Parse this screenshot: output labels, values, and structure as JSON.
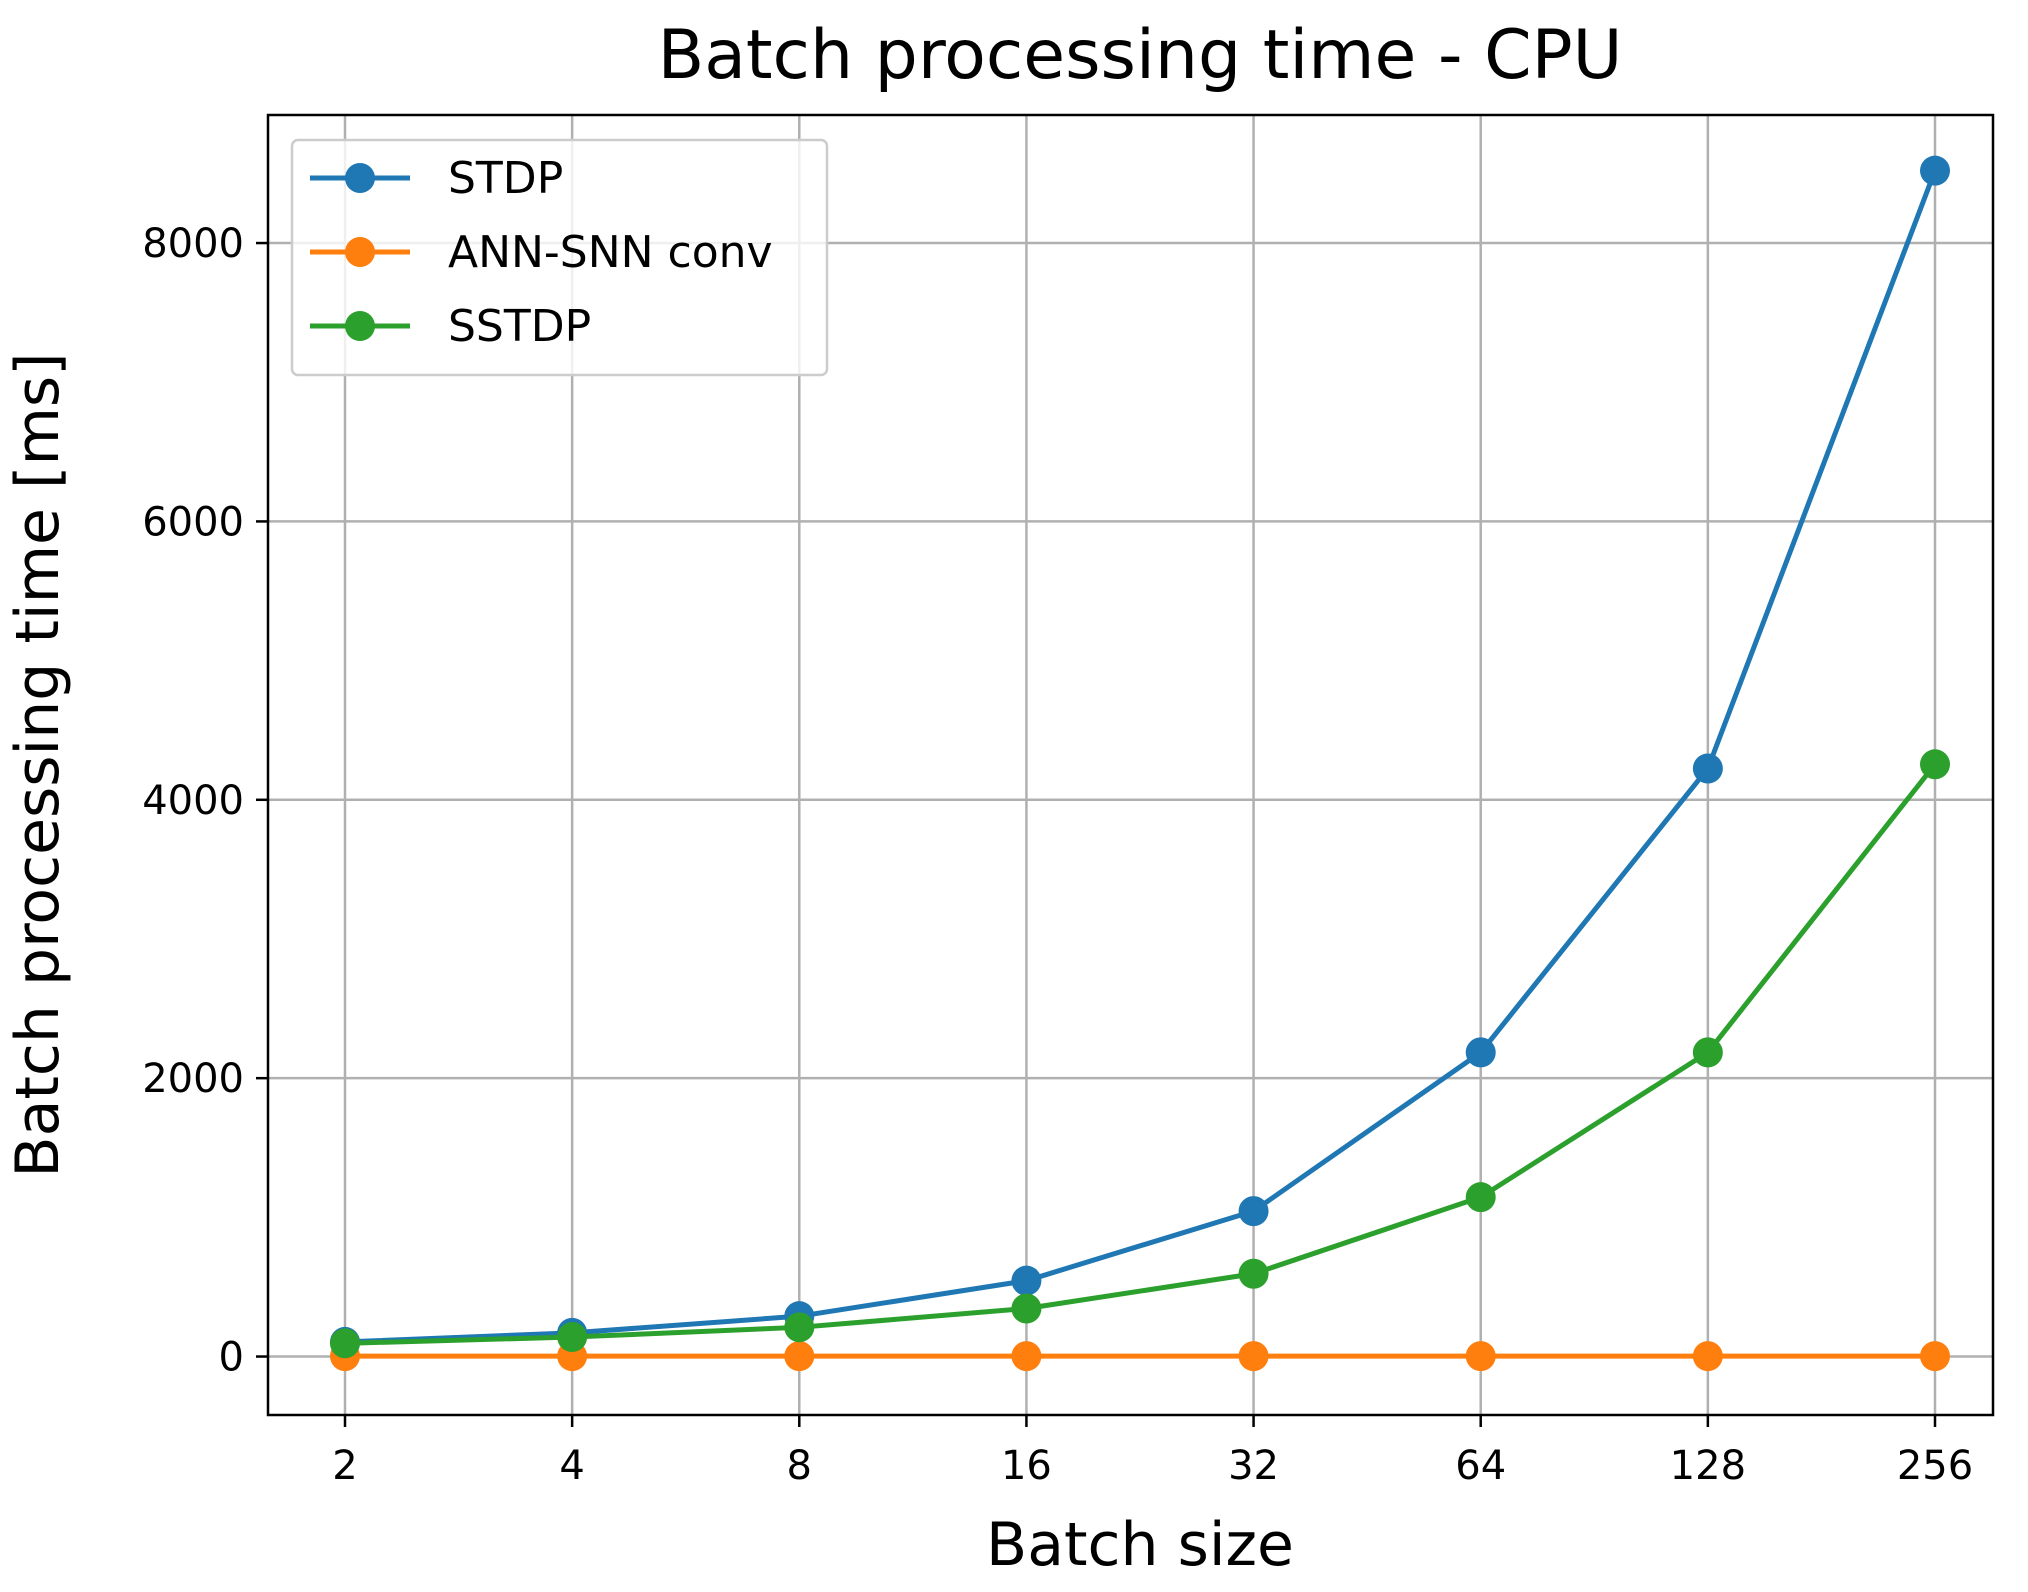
{
  "chart_data": {
    "type": "line",
    "title": "Batch processing time - CPU",
    "xlabel": "Batch size",
    "ylabel": "Batch processing time [ms]",
    "categories": [
      "2",
      "4",
      "8",
      "16",
      "32",
      "64",
      "128",
      "256"
    ],
    "y_ticks": [
      0,
      2000,
      4000,
      6000,
      8000
    ],
    "y_tick_labels": [
      "0",
      "2000",
      "4000",
      "6000",
      "8000"
    ],
    "ylim": [
      -420,
      8920
    ],
    "grid": true,
    "legend_position": "top-left",
    "series": [
      {
        "name": "STDP",
        "color": "#1f77b4",
        "values": [
          105,
          170,
          290,
          545,
          1045,
          2185,
          4225,
          8520
        ]
      },
      {
        "name": "ANN-SNN conv",
        "color": "#ff7f0e",
        "values": [
          3,
          3,
          3,
          3,
          3,
          3,
          3,
          3
        ]
      },
      {
        "name": "SSTDP",
        "color": "#2ca02c",
        "values": [
          95,
          140,
          210,
          345,
          595,
          1145,
          2185,
          4255
        ]
      }
    ]
  }
}
